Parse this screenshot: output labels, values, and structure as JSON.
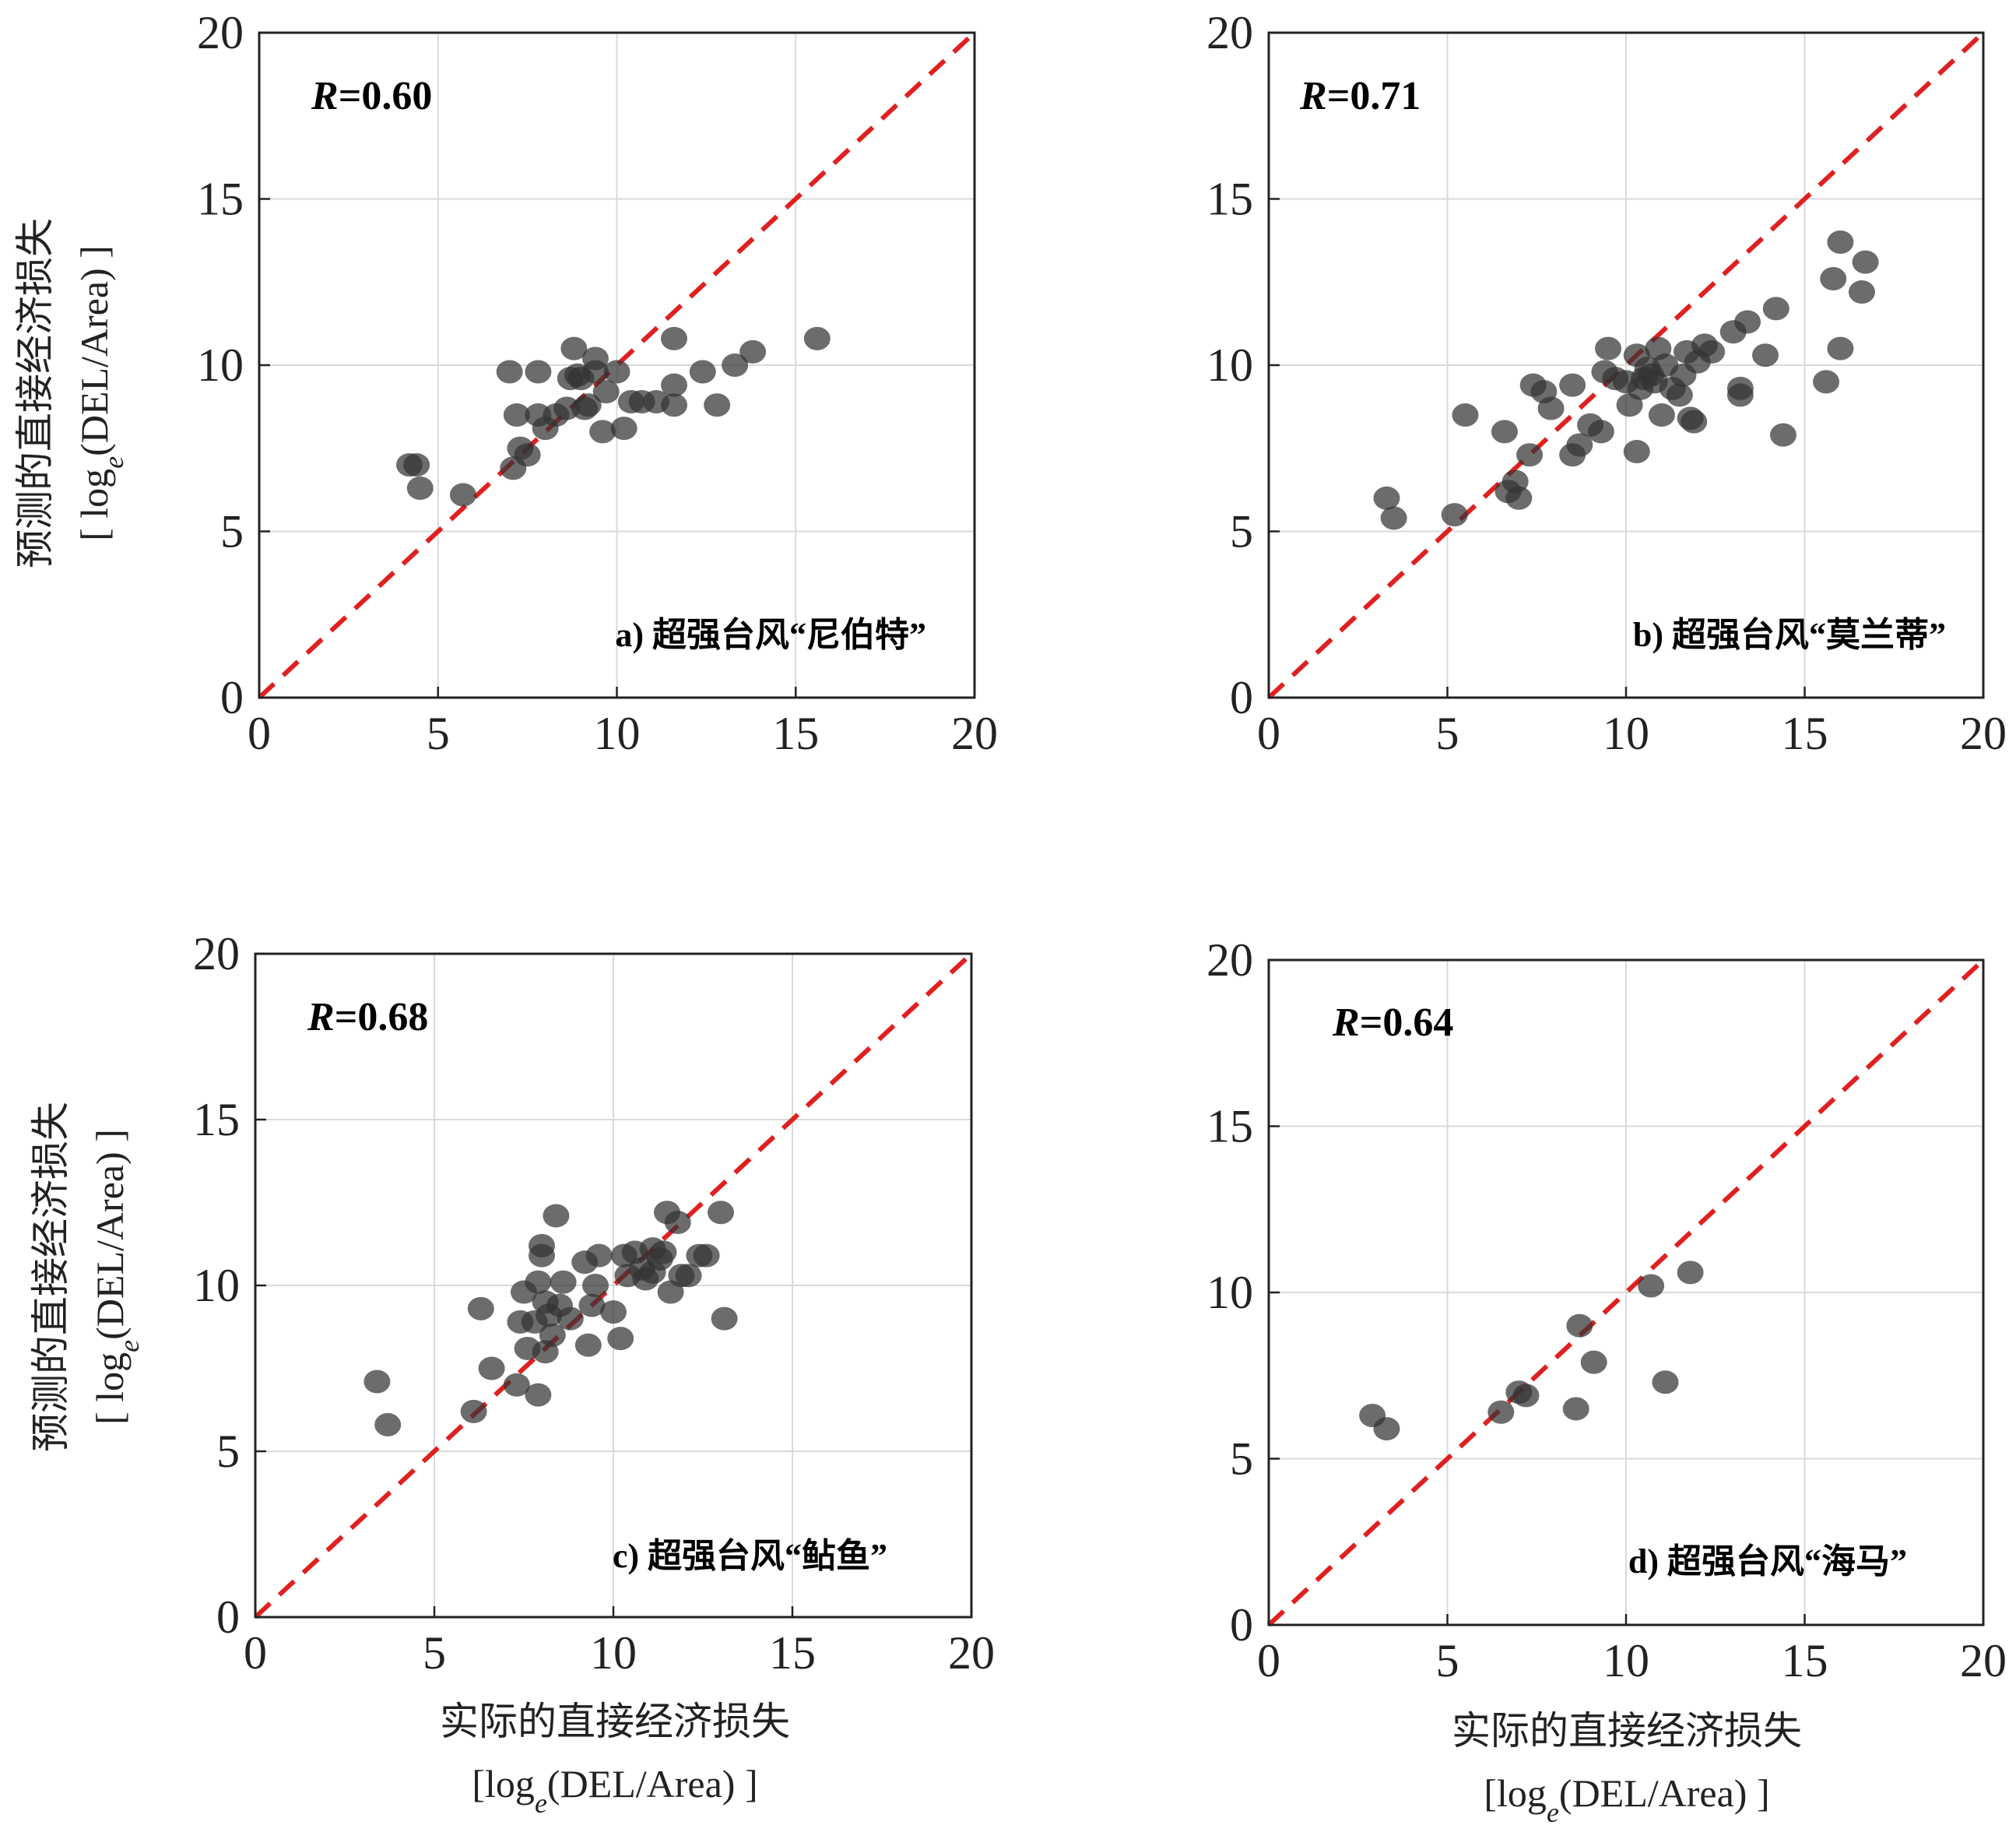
{
  "ylabel_line1": "预测的直接经济损失",
  "ylabel_line2_prefix": "[ log",
  "ylabel_line2_sub": "e",
  "ylabel_line2_suffix": "(DEL/Area) ]",
  "xlabel_line1": "实际的直接经济损失",
  "xlabel_line2_prefix": "[log",
  "xlabel_line2_sub": "e",
  "xlabel_line2_suffix": "(DEL/Area) ]",
  "colors": {
    "points": "#333333",
    "reference_line": "#e02020",
    "grid": "#d9d9d9",
    "axes": "#222222"
  },
  "chart_data": [
    {
      "type": "scatter",
      "panel": "a",
      "caption": "a) 超强台风“尼伯特”",
      "r_label": "R",
      "r_value": "=0.60",
      "xlim": [
        0,
        20
      ],
      "ylim": [
        0,
        20
      ],
      "xticks": [
        0,
        5,
        10,
        15,
        20
      ],
      "yticks": [
        0,
        5,
        10,
        15,
        20
      ],
      "grid": true,
      "reference_line": "y = x",
      "points": [
        [
          4.2,
          7.0
        ],
        [
          4.4,
          7.0
        ],
        [
          4.5,
          6.3
        ],
        [
          5.7,
          6.1
        ],
        [
          7.1,
          6.9
        ],
        [
          7.0,
          9.8
        ],
        [
          7.2,
          8.5
        ],
        [
          7.3,
          7.5
        ],
        [
          7.5,
          7.3
        ],
        [
          7.8,
          9.8
        ],
        [
          7.8,
          8.5
        ],
        [
          8.0,
          8.1
        ],
        [
          8.3,
          8.5
        ],
        [
          8.6,
          8.7
        ],
        [
          8.7,
          9.6
        ],
        [
          8.8,
          10.5
        ],
        [
          8.9,
          9.7
        ],
        [
          9.0,
          9.6
        ],
        [
          9.1,
          8.7
        ],
        [
          9.2,
          8.8
        ],
        [
          9.4,
          10.2
        ],
        [
          9.4,
          9.8
        ],
        [
          9.6,
          8.0
        ],
        [
          9.7,
          9.2
        ],
        [
          10.0,
          9.8
        ],
        [
          10.2,
          8.1
        ],
        [
          10.4,
          8.9
        ],
        [
          10.7,
          8.9
        ],
        [
          11.1,
          8.9
        ],
        [
          11.6,
          9.4
        ],
        [
          11.6,
          8.8
        ],
        [
          11.6,
          10.8
        ],
        [
          12.4,
          9.8
        ],
        [
          12.8,
          8.8
        ],
        [
          13.3,
          10.0
        ],
        [
          13.8,
          10.4
        ],
        [
          15.6,
          10.8
        ]
      ]
    },
    {
      "type": "scatter",
      "panel": "b",
      "caption": "b) 超强台风“莫兰蒂”",
      "r_label": "R",
      "r_value": "=0.71",
      "xlim": [
        0,
        20
      ],
      "ylim": [
        0,
        20
      ],
      "xticks": [
        0,
        5,
        10,
        15,
        20
      ],
      "yticks": [
        0,
        5,
        10,
        15,
        20
      ],
      "grid": true,
      "reference_line": "y = x",
      "points": [
        [
          3.3,
          6.0
        ],
        [
          3.5,
          5.4
        ],
        [
          5.2,
          5.5
        ],
        [
          5.5,
          8.5
        ],
        [
          6.6,
          8.0
        ],
        [
          6.7,
          6.2
        ],
        [
          6.9,
          6.5
        ],
        [
          7.0,
          6.0
        ],
        [
          7.3,
          7.3
        ],
        [
          7.4,
          9.4
        ],
        [
          7.7,
          9.2
        ],
        [
          7.9,
          8.7
        ],
        [
          8.5,
          7.3
        ],
        [
          8.7,
          7.6
        ],
        [
          8.5,
          9.4
        ],
        [
          9.0,
          8.2
        ],
        [
          9.3,
          8.0
        ],
        [
          9.4,
          9.8
        ],
        [
          9.5,
          10.5
        ],
        [
          9.7,
          9.6
        ],
        [
          10.0,
          9.5
        ],
        [
          10.1,
          8.8
        ],
        [
          10.3,
          7.4
        ],
        [
          10.3,
          10.3
        ],
        [
          10.4,
          9.3
        ],
        [
          10.5,
          9.6
        ],
        [
          10.6,
          9.9
        ],
        [
          10.7,
          9.7
        ],
        [
          10.8,
          9.5
        ],
        [
          10.9,
          10.5
        ],
        [
          11.0,
          8.5
        ],
        [
          11.1,
          10.0
        ],
        [
          11.3,
          9.3
        ],
        [
          11.5,
          9.1
        ],
        [
          11.6,
          9.7
        ],
        [
          11.7,
          10.4
        ],
        [
          11.8,
          8.4
        ],
        [
          11.9,
          8.3
        ],
        [
          12.0,
          10.1
        ],
        [
          12.2,
          10.6
        ],
        [
          12.4,
          10.4
        ],
        [
          13.0,
          11.0
        ],
        [
          13.2,
          9.3
        ],
        [
          13.2,
          9.1
        ],
        [
          13.4,
          11.3
        ],
        [
          13.9,
          10.3
        ],
        [
          14.2,
          11.7
        ],
        [
          14.4,
          7.9
        ],
        [
          15.6,
          9.5
        ],
        [
          15.8,
          12.6
        ],
        [
          16.0,
          13.7
        ],
        [
          16.0,
          10.5
        ],
        [
          16.6,
          12.2
        ],
        [
          16.7,
          13.1
        ]
      ]
    },
    {
      "type": "scatter",
      "panel": "c",
      "caption": "c) 超强台风“鲇鱼”",
      "r_label": "R",
      "r_value": "=0.68",
      "xlim": [
        0,
        20
      ],
      "ylim": [
        0,
        20
      ],
      "xticks": [
        0,
        5,
        10,
        15,
        20
      ],
      "yticks": [
        0,
        5,
        10,
        15,
        20
      ],
      "grid": true,
      "reference_line": "y = x",
      "points": [
        [
          3.4,
          7.1
        ],
        [
          3.7,
          5.8
        ],
        [
          6.1,
          6.2
        ],
        [
          6.3,
          9.3
        ],
        [
          6.6,
          7.5
        ],
        [
          7.3,
          7.0
        ],
        [
          7.4,
          8.9
        ],
        [
          7.5,
          9.8
        ],
        [
          7.6,
          8.1
        ],
        [
          7.8,
          8.9
        ],
        [
          7.9,
          6.7
        ],
        [
          7.9,
          10.1
        ],
        [
          8.0,
          10.9
        ],
        [
          8.0,
          11.2
        ],
        [
          8.1,
          8.0
        ],
        [
          8.1,
          9.5
        ],
        [
          8.2,
          9.1
        ],
        [
          8.3,
          8.5
        ],
        [
          8.4,
          12.1
        ],
        [
          8.5,
          9.4
        ],
        [
          8.6,
          10.1
        ],
        [
          8.8,
          9.0
        ],
        [
          9.2,
          10.7
        ],
        [
          9.3,
          8.2
        ],
        [
          9.4,
          9.4
        ],
        [
          9.5,
          10.0
        ],
        [
          9.6,
          10.9
        ],
        [
          10.0,
          9.2
        ],
        [
          10.2,
          8.4
        ],
        [
          10.3,
          10.9
        ],
        [
          10.4,
          10.3
        ],
        [
          10.6,
          11.0
        ],
        [
          10.8,
          10.5
        ],
        [
          10.9,
          10.2
        ],
        [
          11.1,
          10.4
        ],
        [
          11.1,
          11.1
        ],
        [
          11.3,
          10.8
        ],
        [
          11.4,
          11.0
        ],
        [
          11.5,
          12.2
        ],
        [
          11.6,
          9.8
        ],
        [
          11.8,
          11.9
        ],
        [
          11.9,
          10.3
        ],
        [
          12.1,
          10.3
        ],
        [
          12.4,
          10.9
        ],
        [
          12.6,
          10.9
        ],
        [
          13.0,
          12.2
        ],
        [
          13.1,
          9.0
        ]
      ]
    },
    {
      "type": "scatter",
      "panel": "d",
      "caption": "d) 超强台风“海马”",
      "r_label": "R",
      "r_value": "=0.64",
      "xlim": [
        0,
        20
      ],
      "ylim": [
        0,
        20
      ],
      "xticks": [
        0,
        5,
        10,
        15,
        20
      ],
      "yticks": [
        0,
        5,
        10,
        15,
        20
      ],
      "grid": true,
      "reference_line": "y = x",
      "points": [
        [
          2.9,
          6.3
        ],
        [
          3.3,
          5.9
        ],
        [
          6.5,
          6.4
        ],
        [
          7.0,
          7.0
        ],
        [
          7.2,
          6.9
        ],
        [
          8.6,
          6.5
        ],
        [
          8.7,
          9.0
        ],
        [
          9.1,
          7.9
        ],
        [
          10.7,
          10.2
        ],
        [
          11.1,
          7.3
        ],
        [
          11.8,
          10.6
        ]
      ]
    }
  ]
}
